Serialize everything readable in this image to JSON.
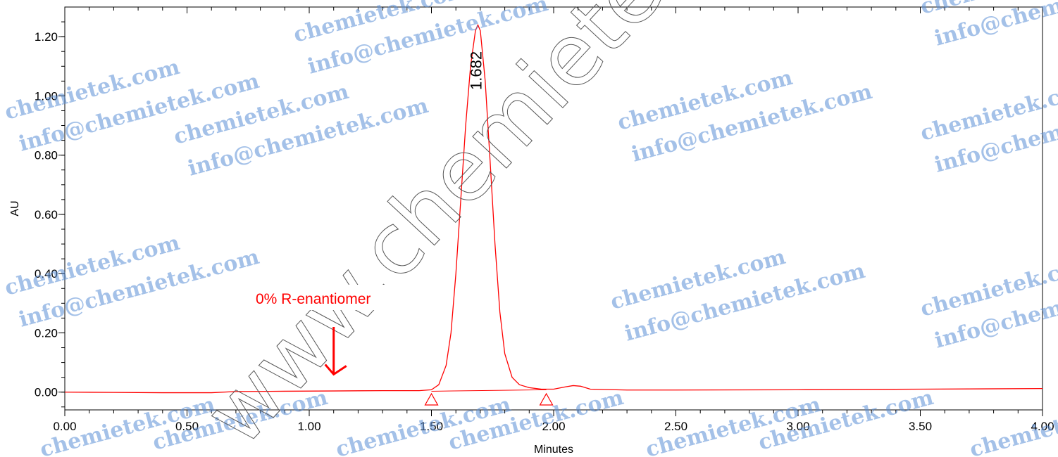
{
  "chart_data": {
    "type": "line",
    "xlabel": "Minutes",
    "ylabel": "AU",
    "xlim": [
      0.0,
      4.0
    ],
    "ylim": [
      -0.06,
      1.3
    ],
    "x_ticks": [
      "0.00",
      "0.50",
      "1.00",
      "1.50",
      "2.00",
      "2.50",
      "3.00",
      "3.50",
      "4.00"
    ],
    "y_ticks": [
      "0.00",
      "0.20",
      "0.40",
      "0.60",
      "0.80",
      "1.00",
      "1.20"
    ],
    "series": [
      {
        "color": "#ff0000",
        "x": [
          0.0,
          0.2,
          0.4,
          0.6,
          0.7,
          0.9,
          1.1,
          1.3,
          1.45,
          1.5,
          1.53,
          1.56,
          1.58,
          1.6,
          1.62,
          1.64,
          1.66,
          1.68,
          1.69,
          1.7,
          1.72,
          1.74,
          1.76,
          1.78,
          1.8,
          1.83,
          1.86,
          1.9,
          1.95,
          2.0,
          2.05,
          2.08,
          2.11,
          2.15,
          2.3,
          2.5,
          3.0,
          3.5,
          4.0
        ],
        "y": [
          0.0,
          -0.001,
          -0.002,
          -0.002,
          0.002,
          0.003,
          0.004,
          0.005,
          0.005,
          0.008,
          0.025,
          0.09,
          0.2,
          0.4,
          0.65,
          0.9,
          1.1,
          1.22,
          1.24,
          1.22,
          1.05,
          0.78,
          0.5,
          0.27,
          0.13,
          0.05,
          0.025,
          0.015,
          0.01,
          0.01,
          0.018,
          0.022,
          0.02,
          0.01,
          0.007,
          0.007,
          0.008,
          0.01,
          0.012
        ]
      }
    ],
    "baseline": {
      "x": [
        1.5,
        1.97
      ],
      "y": [
        0.003,
        0.008
      ]
    },
    "peak_markers_x": [
      1.5,
      1.97
    ],
    "peak_label": {
      "text": "1.682",
      "x": 1.682,
      "y": 1.24
    },
    "annotation": {
      "text": "0% R-enantiomer",
      "arrow_to_x": 1.1,
      "arrow_to_y": 0.06,
      "color": "#ff0000"
    },
    "grid": false
  },
  "watermark": {
    "diagonal_text": "www.chemietek.com",
    "line1": "chemietek.com",
    "line2": "info@chemietek.com"
  }
}
